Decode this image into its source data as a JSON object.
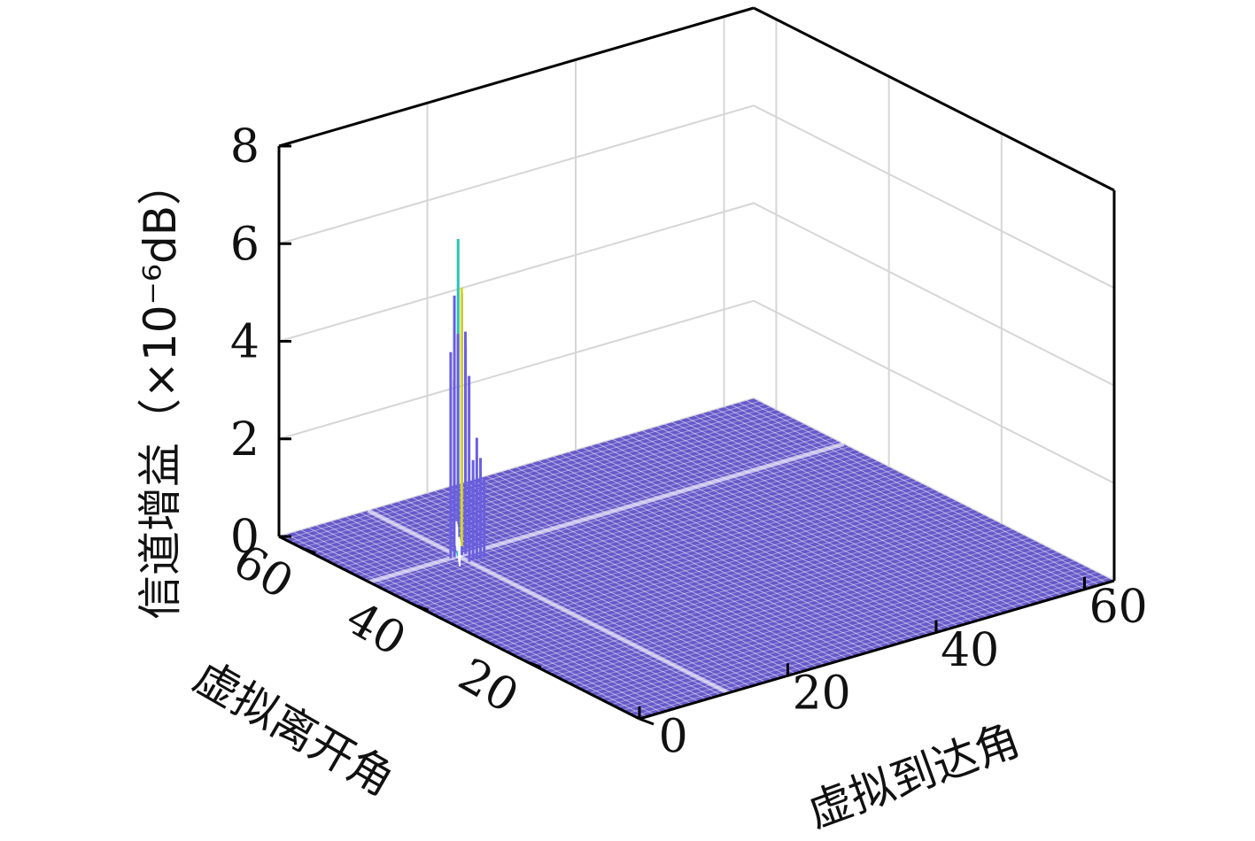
{
  "chart_data": {
    "type": "surface",
    "title": "",
    "xlabel": "虚拟到达角",
    "ylabel": "虚拟离开角",
    "zlabel": "信道增益（×10⁻⁶dB）",
    "xlim": [
      0,
      64
    ],
    "ylim": [
      0,
      64
    ],
    "zlim": [
      0,
      8
    ],
    "x_ticks": [
      "0",
      "20",
      "40",
      "60"
    ],
    "y_ticks": [
      "0",
      "20",
      "40",
      "60"
    ],
    "z_ticks": [
      "0",
      "2",
      "4",
      "6",
      "8"
    ],
    "grid": true,
    "colormap": "parula",
    "peaks": [
      {
        "x": 12,
        "y": 48,
        "z": 6.5
      },
      {
        "x": 14,
        "y": 50,
        "z": 5.3
      },
      {
        "x": 13,
        "y": 46,
        "z": 2.5
      }
    ],
    "floor_value": 0
  },
  "colors": {
    "mesh": "#4b3cc0",
    "mesh_light": "#6a5ee0",
    "peak_top": "#29c4b5",
    "peak_yellow": "#d7d62b",
    "axis": "#000000",
    "grid": "#d6d6d6"
  }
}
